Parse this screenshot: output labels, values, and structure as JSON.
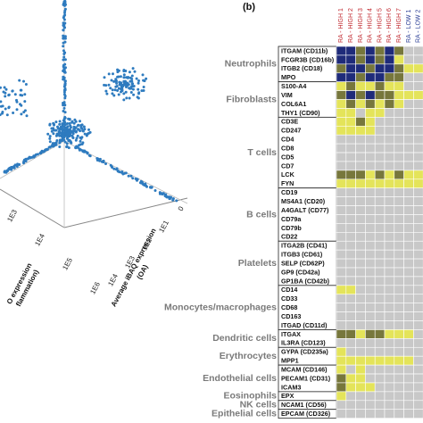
{
  "left_panel": {
    "axis_a_ticks": [
      "1E3",
      "1E4",
      "1E5",
      "1E6"
    ],
    "axis_a_title": [
      "O expression",
      "flammation)"
    ],
    "axis_b_ticks": [
      "0",
      "1E1",
      "1E2",
      "1E3",
      "1E4"
    ],
    "axis_b_title": [
      "Average iBAQ expression",
      "(OA)"
    ]
  },
  "right_panel": {
    "label": "(b)",
    "columns": [
      {
        "text": "RA - HIGH 1",
        "color": "#c0262d"
      },
      {
        "text": "RA - HIGH 2",
        "color": "#c0262d"
      },
      {
        "text": "RA - HIGH 3",
        "color": "#c0262d"
      },
      {
        "text": "RA - HIGH 4",
        "color": "#c0262d"
      },
      {
        "text": "RA - HIGH 5",
        "color": "#c0262d"
      },
      {
        "text": "RA - HIGH 6",
        "color": "#c0262d"
      },
      {
        "text": "RA - HIGH 7",
        "color": "#c0262d"
      },
      {
        "text": "RA - LOW 1",
        "color": "#2c3f96"
      },
      {
        "text": "RA - LOW 2",
        "color": "#2c3f96"
      }
    ],
    "palette": [
      "#c8c8c8",
      "#e4e45a",
      "#77773c",
      "#1f2b7a"
    ],
    "groups": [
      {
        "name": "Neutrophils",
        "genes": [
          "ITGAM (CD11b)",
          "FCGR3B (CD16b)",
          "ITGB2 (CD18)",
          "MPO"
        ],
        "levels": [
          [
            3,
            3,
            2,
            3,
            2,
            3,
            2,
            0,
            0
          ],
          [
            3,
            3,
            2,
            3,
            2,
            3,
            1,
            0,
            0
          ],
          [
            2,
            3,
            3,
            2,
            3,
            3,
            2,
            1,
            1
          ],
          [
            3,
            3,
            2,
            3,
            3,
            2,
            2,
            0,
            0
          ]
        ]
      },
      {
        "name": "Fibroblasts",
        "genes": [
          "S100-A4",
          "VIM",
          "COL6A1",
          "THY1 (CD90)"
        ],
        "levels": [
          [
            1,
            2,
            1,
            1,
            2,
            1,
            1,
            0,
            0
          ],
          [
            2,
            3,
            2,
            3,
            2,
            2,
            1,
            1,
            1
          ],
          [
            1,
            2,
            1,
            2,
            1,
            2,
            1,
            0,
            0
          ],
          [
            1,
            1,
            0,
            1,
            1,
            0,
            0,
            0,
            0
          ]
        ]
      },
      {
        "name": "T cells",
        "genes": [
          "CD3E",
          "CD247",
          "CD4",
          "CD8",
          "CD5",
          "CD7",
          "LCK",
          "FYN"
        ],
        "levels": [
          [
            1,
            1,
            2,
            1,
            0,
            0,
            0,
            0,
            0
          ],
          [
            1,
            1,
            1,
            1,
            0,
            0,
            0,
            0,
            0
          ],
          [
            0,
            0,
            0,
            0,
            0,
            0,
            0,
            0,
            0
          ],
          [
            0,
            0,
            0,
            0,
            0,
            0,
            0,
            0,
            0
          ],
          [
            0,
            0,
            0,
            0,
            0,
            0,
            0,
            0,
            0
          ],
          [
            0,
            0,
            0,
            0,
            0,
            0,
            0,
            0,
            0
          ],
          [
            2,
            2,
            2,
            1,
            2,
            1,
            2,
            1,
            1
          ],
          [
            1,
            1,
            1,
            1,
            1,
            1,
            1,
            1,
            1
          ]
        ]
      },
      {
        "name": "B cells",
        "genes": [
          "CD19",
          "MS4A1 (CD20)",
          "A4GALT (CD77)",
          "CD79a",
          "CD79b",
          "CD22"
        ],
        "levels": [
          [
            0,
            0,
            0,
            0,
            0,
            0,
            0,
            0,
            0
          ],
          [
            0,
            0,
            0,
            0,
            0,
            0,
            0,
            0,
            0
          ],
          [
            0,
            0,
            0,
            0,
            0,
            0,
            0,
            0,
            0
          ],
          [
            0,
            0,
            0,
            0,
            0,
            0,
            0,
            0,
            0
          ],
          [
            0,
            0,
            0,
            0,
            0,
            0,
            0,
            0,
            0
          ],
          [
            0,
            0,
            0,
            0,
            0,
            0,
            0,
            0,
            0
          ]
        ]
      },
      {
        "name": "Platelets",
        "genes": [
          "ITGA2B (CD41)",
          "ITGB3 (CD61)",
          "SELP (CD62P)",
          "GP9 (CD42a)",
          "GP1BA (CD42b)"
        ],
        "levels": [
          [
            0,
            0,
            0,
            0,
            0,
            0,
            0,
            0,
            0
          ],
          [
            0,
            0,
            0,
            0,
            0,
            0,
            0,
            0,
            0
          ],
          [
            0,
            0,
            0,
            0,
            0,
            0,
            0,
            0,
            0
          ],
          [
            0,
            0,
            0,
            0,
            0,
            0,
            0,
            0,
            0
          ],
          [
            0,
            0,
            0,
            0,
            0,
            0,
            0,
            0,
            0
          ]
        ]
      },
      {
        "name": "Monocytes/macrophages",
        "genes": [
          "CD14",
          "CD33",
          "CD68",
          "CD163",
          "ITGAD (CD11d)"
        ],
        "levels": [
          [
            1,
            1,
            0,
            0,
            0,
            0,
            0,
            0,
            0
          ],
          [
            0,
            0,
            0,
            0,
            0,
            0,
            0,
            0,
            0
          ],
          [
            0,
            0,
            0,
            0,
            0,
            0,
            0,
            0,
            0
          ],
          [
            0,
            0,
            0,
            0,
            0,
            0,
            0,
            0,
            0
          ],
          [
            0,
            0,
            0,
            0,
            0,
            0,
            0,
            0,
            0
          ]
        ]
      },
      {
        "name": "Dendritic cells",
        "genes": [
          "ITGAX",
          "IL3RA (CD123)"
        ],
        "levels": [
          [
            2,
            2,
            1,
            2,
            2,
            1,
            1,
            1,
            0
          ],
          [
            0,
            0,
            0,
            0,
            0,
            0,
            0,
            0,
            0
          ]
        ]
      },
      {
        "name": "Erythrocytes",
        "genes": [
          "GYPA (CD235a)",
          "MPP1"
        ],
        "levels": [
          [
            1,
            0,
            0,
            0,
            0,
            0,
            0,
            0,
            0
          ],
          [
            1,
            1,
            1,
            1,
            1,
            1,
            1,
            1,
            0
          ]
        ]
      },
      {
        "name": "Endothelial cells",
        "genes": [
          "MCAM (CD146)",
          "PECAM1 (CD31)",
          "ICAM3"
        ],
        "levels": [
          [
            1,
            0,
            1,
            0,
            0,
            0,
            0,
            0,
            0
          ],
          [
            2,
            1,
            1,
            0,
            0,
            0,
            0,
            0,
            0
          ],
          [
            2,
            1,
            1,
            1,
            0,
            0,
            0,
            0,
            0
          ]
        ]
      },
      {
        "name": "Eosinophils",
        "genes": [
          "EPX"
        ],
        "levels": [
          [
            1,
            0,
            0,
            0,
            0,
            0,
            0,
            0,
            0
          ]
        ]
      },
      {
        "name": "NK cells",
        "genes": [
          "NCAM1 (CD56)"
        ],
        "levels": [
          [
            0,
            0,
            0,
            0,
            0,
            0,
            0,
            0,
            0
          ]
        ]
      },
      {
        "name": "Epithelial cells",
        "genes": [
          "EPCAM (CD326)"
        ],
        "levels": [
          [
            0,
            0,
            0,
            0,
            0,
            0,
            0,
            0,
            0
          ]
        ]
      }
    ]
  }
}
